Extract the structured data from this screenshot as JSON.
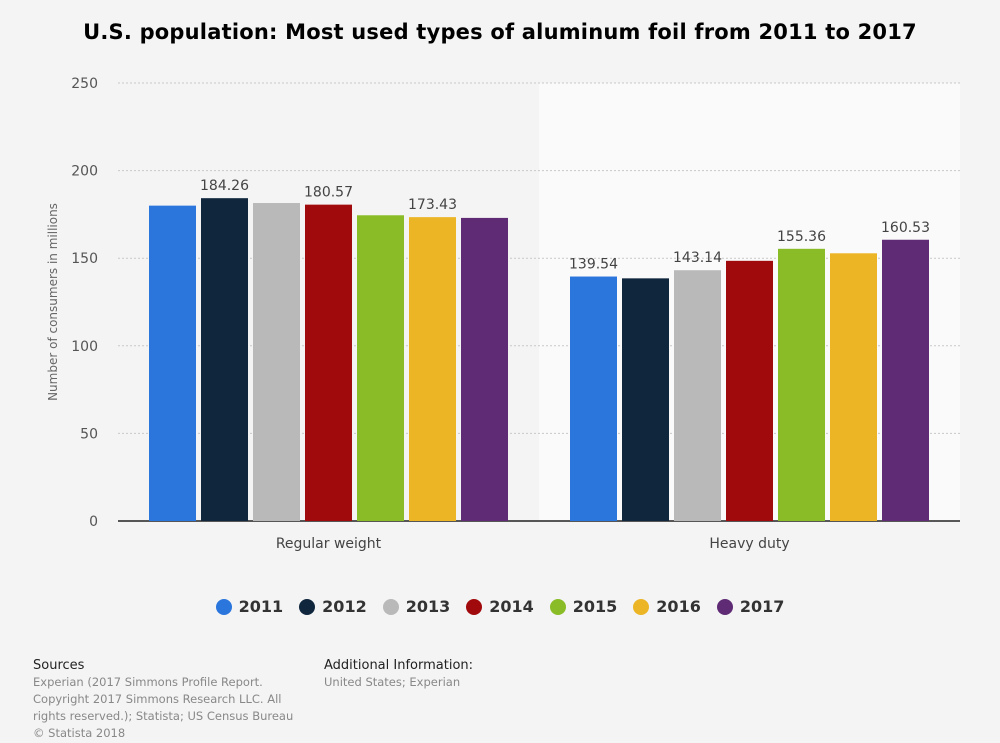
{
  "chart_data": {
    "type": "bar",
    "title": "U.S. population: Most used types of aluminum foil from 2011 to 2017",
    "ylabel": "Number of consumers in millions",
    "xlabel": "",
    "categories": [
      "Regular weight",
      "Heavy duty"
    ],
    "ylim": [
      0,
      250
    ],
    "yticks": [
      0,
      50,
      100,
      150,
      200,
      250
    ],
    "grid": true,
    "legend_position": "bottom",
    "series": [
      {
        "name": "2011",
        "color": "#2a76dd",
        "values": [
          180.0,
          139.54
        ],
        "labels": [
          "",
          "139.54"
        ]
      },
      {
        "name": "2012",
        "color": "#0f263d",
        "values": [
          184.26,
          138.5
        ],
        "labels": [
          "184.26",
          ""
        ]
      },
      {
        "name": "2013",
        "color": "#b9b9b9",
        "values": [
          181.5,
          143.14
        ],
        "labels": [
          "",
          "143.14"
        ]
      },
      {
        "name": "2014",
        "color": "#a10a0d",
        "values": [
          180.57,
          148.5
        ],
        "labels": [
          "180.57",
          ""
        ]
      },
      {
        "name": "2015",
        "color": "#89bc27",
        "values": [
          174.5,
          155.36
        ],
        "labels": [
          "",
          "155.36"
        ]
      },
      {
        "name": "2016",
        "color": "#ebb526",
        "values": [
          173.43,
          152.8
        ],
        "labels": [
          "173.43",
          ""
        ]
      },
      {
        "name": "2017",
        "color": "#5e2b74",
        "values": [
          173.0,
          160.53
        ],
        "labels": [
          "",
          "160.53"
        ]
      }
    ]
  },
  "footer": {
    "sources_heading": "Sources",
    "sources_text": "Experian (2017 Simmons Profile Report. Copyright 2017 Simmons Research LLC. All rights reserved.); Statista; US Census Bureau",
    "copyright": "© Statista 2018",
    "additional_heading": "Additional Information:",
    "additional_text": "United States; Experian"
  }
}
